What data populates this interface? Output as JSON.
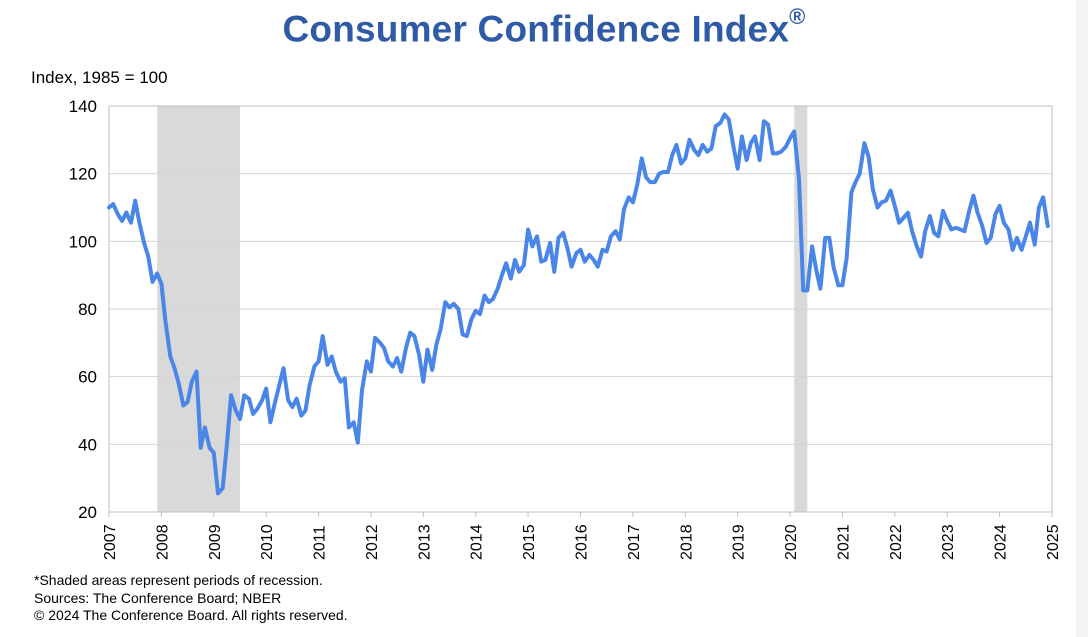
{
  "title": "Consumer Confidence Index",
  "title_mark": "®",
  "unit_label": "Index, 1985 = 100",
  "footer": {
    "note": "*Shaded areas represent periods of recession.",
    "sources": "Sources: The Conference Board;  NBER",
    "copyright": "© 2024 The Conference Board. All rights reserved."
  },
  "colors": {
    "title": "#2e5aa6",
    "line": "#4a86e8",
    "recession": "#d9d9d9",
    "grid": "#d4d4d4"
  },
  "chart_data": {
    "type": "line",
    "title": "Consumer Confidence Index",
    "ylabel": "Index, 1985 = 100",
    "xlabel": "",
    "ylim": [
      20,
      140
    ],
    "xlim": [
      2007,
      2025
    ],
    "yticks": [
      20,
      40,
      60,
      80,
      100,
      120,
      140
    ],
    "xticks": [
      "2007",
      "2008",
      "2009",
      "2010",
      "2011",
      "2012",
      "2013",
      "2014",
      "2015",
      "2016",
      "2017",
      "2018",
      "2019",
      "2020",
      "2021",
      "2022",
      "2023",
      "2024",
      "2025"
    ],
    "grid": true,
    "recessions": [
      {
        "start": 2007.92,
        "end": 2009.5
      },
      {
        "start": 2020.08,
        "end": 2020.33
      }
    ],
    "series": [
      {
        "points": [
          [
            2007.0,
            110
          ],
          [
            2007.08,
            111
          ],
          [
            2007.17,
            108
          ],
          [
            2007.25,
            106
          ],
          [
            2007.33,
            108.5
          ],
          [
            2007.42,
            105.5
          ],
          [
            2007.5,
            112
          ],
          [
            2007.58,
            105.5
          ],
          [
            2007.67,
            99.5
          ],
          [
            2007.75,
            95.5
          ],
          [
            2007.83,
            88
          ],
          [
            2007.92,
            90.5
          ],
          [
            2008.0,
            87.5
          ],
          [
            2008.08,
            76
          ],
          [
            2008.17,
            66
          ],
          [
            2008.25,
            62.5
          ],
          [
            2008.33,
            58
          ],
          [
            2008.42,
            51.5
          ],
          [
            2008.5,
            52.5
          ],
          [
            2008.58,
            58.5
          ],
          [
            2008.67,
            61.5
          ],
          [
            2008.75,
            39
          ],
          [
            2008.83,
            45
          ],
          [
            2008.92,
            39
          ],
          [
            2009.0,
            37.5
          ],
          [
            2009.08,
            25.5
          ],
          [
            2009.17,
            27
          ],
          [
            2009.25,
            40
          ],
          [
            2009.33,
            54.5
          ],
          [
            2009.42,
            50
          ],
          [
            2009.5,
            47.5
          ],
          [
            2009.58,
            54.5
          ],
          [
            2009.67,
            53.5
          ],
          [
            2009.75,
            49
          ],
          [
            2009.83,
            50.5
          ],
          [
            2009.92,
            53
          ],
          [
            2010.0,
            56.5
          ],
          [
            2010.08,
            46.5
          ],
          [
            2010.17,
            52.5
          ],
          [
            2010.25,
            57.5
          ],
          [
            2010.33,
            62.5
          ],
          [
            2010.42,
            53
          ],
          [
            2010.5,
            51
          ],
          [
            2010.58,
            53.5
          ],
          [
            2010.67,
            48.5
          ],
          [
            2010.75,
            50
          ],
          [
            2010.83,
            57.5
          ],
          [
            2010.92,
            63
          ],
          [
            2011.0,
            64.5
          ],
          [
            2011.08,
            72
          ],
          [
            2011.17,
            63.5
          ],
          [
            2011.25,
            66
          ],
          [
            2011.33,
            61.5
          ],
          [
            2011.42,
            58.5
          ],
          [
            2011.5,
            59.5
          ],
          [
            2011.58,
            45
          ],
          [
            2011.67,
            46.5
          ],
          [
            2011.75,
            40.5
          ],
          [
            2011.83,
            56
          ],
          [
            2011.92,
            64.5
          ],
          [
            2012.0,
            61.5
          ],
          [
            2012.08,
            71.5
          ],
          [
            2012.17,
            70
          ],
          [
            2012.25,
            68.5
          ],
          [
            2012.33,
            64.5
          ],
          [
            2012.42,
            63
          ],
          [
            2012.5,
            65.5
          ],
          [
            2012.58,
            61.5
          ],
          [
            2012.67,
            68.5
          ],
          [
            2012.75,
            73
          ],
          [
            2012.83,
            72
          ],
          [
            2012.92,
            66.5
          ],
          [
            2013.0,
            58.5
          ],
          [
            2013.08,
            68
          ],
          [
            2013.17,
            62
          ],
          [
            2013.25,
            69.5
          ],
          [
            2013.33,
            74
          ],
          [
            2013.42,
            82
          ],
          [
            2013.5,
            80.5
          ],
          [
            2013.58,
            81.5
          ],
          [
            2013.67,
            80
          ],
          [
            2013.75,
            72.5
          ],
          [
            2013.83,
            72
          ],
          [
            2013.92,
            77
          ],
          [
            2014.0,
            79.5
          ],
          [
            2014.08,
            78.5
          ],
          [
            2014.17,
            84
          ],
          [
            2014.25,
            82
          ],
          [
            2014.33,
            83
          ],
          [
            2014.42,
            86
          ],
          [
            2014.5,
            90
          ],
          [
            2014.58,
            93.5
          ],
          [
            2014.67,
            89
          ],
          [
            2014.75,
            94.5
          ],
          [
            2014.83,
            91
          ],
          [
            2014.92,
            93
          ],
          [
            2015.0,
            103.5
          ],
          [
            2015.08,
            98.5
          ],
          [
            2015.17,
            101.5
          ],
          [
            2015.25,
            94
          ],
          [
            2015.33,
            94.5
          ],
          [
            2015.42,
            99.5
          ],
          [
            2015.5,
            91
          ],
          [
            2015.58,
            101
          ],
          [
            2015.67,
            102.5
          ],
          [
            2015.75,
            98
          ],
          [
            2015.83,
            92.5
          ],
          [
            2015.92,
            96.5
          ],
          [
            2016.0,
            97.5
          ],
          [
            2016.08,
            94
          ],
          [
            2016.17,
            96
          ],
          [
            2016.25,
            94.5
          ],
          [
            2016.33,
            92.5
          ],
          [
            2016.42,
            97.5
          ],
          [
            2016.5,
            97
          ],
          [
            2016.58,
            101.5
          ],
          [
            2016.67,
            103
          ],
          [
            2016.75,
            100.5
          ],
          [
            2016.83,
            109.5
          ],
          [
            2016.92,
            113
          ],
          [
            2017.0,
            111.5
          ],
          [
            2017.08,
            116.5
          ],
          [
            2017.17,
            124.5
          ],
          [
            2017.25,
            119
          ],
          [
            2017.33,
            117.5
          ],
          [
            2017.42,
            117.5
          ],
          [
            2017.5,
            120
          ],
          [
            2017.58,
            120.5
          ],
          [
            2017.67,
            120.5
          ],
          [
            2017.75,
            125.5
          ],
          [
            2017.83,
            128.5
          ],
          [
            2017.92,
            123
          ],
          [
            2018.0,
            124.5
          ],
          [
            2018.08,
            130
          ],
          [
            2018.17,
            127
          ],
          [
            2018.25,
            125.5
          ],
          [
            2018.33,
            128.5
          ],
          [
            2018.42,
            126.5
          ],
          [
            2018.5,
            127.5
          ],
          [
            2018.58,
            134
          ],
          [
            2018.67,
            135
          ],
          [
            2018.75,
            137.5
          ],
          [
            2018.83,
            136
          ],
          [
            2018.92,
            128
          ],
          [
            2019.0,
            121.5
          ],
          [
            2019.08,
            131
          ],
          [
            2019.17,
            124
          ],
          [
            2019.25,
            129
          ],
          [
            2019.33,
            131
          ],
          [
            2019.42,
            124
          ],
          [
            2019.5,
            135.5
          ],
          [
            2019.58,
            134.5
          ],
          [
            2019.67,
            126
          ],
          [
            2019.75,
            126
          ],
          [
            2019.83,
            126.5
          ],
          [
            2019.92,
            128
          ],
          [
            2020.0,
            130.5
          ],
          [
            2020.08,
            132.5
          ],
          [
            2020.17,
            118.5
          ],
          [
            2020.25,
            85.5
          ],
          [
            2020.33,
            85.5
          ],
          [
            2020.42,
            98.5
          ],
          [
            2020.5,
            91.5
          ],
          [
            2020.58,
            86
          ],
          [
            2020.67,
            101
          ],
          [
            2020.75,
            101
          ],
          [
            2020.83,
            92.5
          ],
          [
            2020.92,
            87
          ],
          [
            2021.0,
            87
          ],
          [
            2021.08,
            95
          ],
          [
            2021.17,
            114.5
          ],
          [
            2021.25,
            117.5
          ],
          [
            2021.33,
            120
          ],
          [
            2021.42,
            129
          ],
          [
            2021.5,
            125
          ],
          [
            2021.58,
            115.5
          ],
          [
            2021.67,
            110
          ],
          [
            2021.75,
            111.5
          ],
          [
            2021.83,
            112
          ],
          [
            2021.92,
            115
          ],
          [
            2022.0,
            110.5
          ],
          [
            2022.08,
            105.5
          ],
          [
            2022.17,
            107
          ],
          [
            2022.25,
            108.5
          ],
          [
            2022.33,
            103
          ],
          [
            2022.42,
            98.5
          ],
          [
            2022.5,
            95.5
          ],
          [
            2022.58,
            103
          ],
          [
            2022.67,
            107.5
          ],
          [
            2022.75,
            102.5
          ],
          [
            2022.83,
            101.5
          ],
          [
            2022.92,
            109
          ],
          [
            2023.0,
            106
          ],
          [
            2023.08,
            103.5
          ],
          [
            2023.17,
            104
          ],
          [
            2023.25,
            103.5
          ],
          [
            2023.33,
            103
          ],
          [
            2023.42,
            109
          ],
          [
            2023.5,
            113.5
          ],
          [
            2023.58,
            108.5
          ],
          [
            2023.67,
            104.5
          ],
          [
            2023.75,
            99.5
          ],
          [
            2023.83,
            101
          ],
          [
            2023.92,
            108
          ],
          [
            2024.0,
            110.5
          ],
          [
            2024.08,
            105.5
          ],
          [
            2024.17,
            103.5
          ],
          [
            2024.25,
            97.5
          ],
          [
            2024.33,
            101
          ],
          [
            2024.42,
            97.5
          ],
          [
            2024.5,
            101.5
          ],
          [
            2024.58,
            105.5
          ],
          [
            2024.67,
            99
          ],
          [
            2024.75,
            110
          ],
          [
            2024.83,
            113
          ],
          [
            2024.92,
            104.5
          ]
        ]
      }
    ]
  }
}
